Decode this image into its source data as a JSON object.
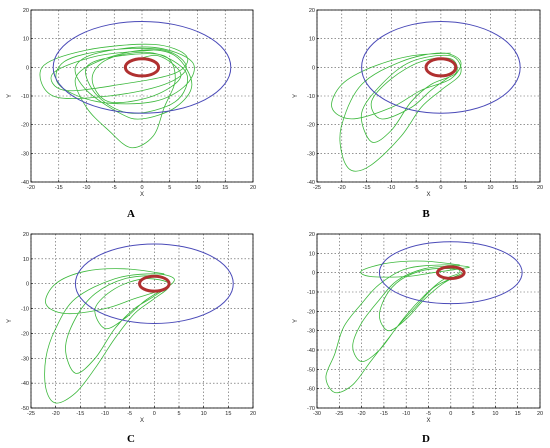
{
  "chart_data": [
    {
      "type": "line",
      "panel_label": "A",
      "xlabel": "X",
      "ylabel": "Y",
      "xlim": [
        -20,
        20
      ],
      "ylim": [
        -40,
        20
      ],
      "xticks": [
        -20,
        -15,
        -10,
        -5,
        0,
        5,
        10,
        15,
        20
      ],
      "yticks": [
        -40,
        -30,
        -20,
        -10,
        0,
        10,
        20
      ],
      "grid": true,
      "outer_circle": {
        "cx": 0,
        "cy": 0,
        "rx": 16,
        "ry": 16,
        "color": "#4a4ab8"
      },
      "inner_circle": {
        "cx": 0,
        "cy": 0,
        "rx": 3,
        "ry": 3,
        "color": "#b03030"
      },
      "trajectory_color": "#3cb83c",
      "trajectory": [
        [
          2,
          6
        ],
        [
          -8,
          4
        ],
        [
          -16,
          -2
        ],
        [
          -14,
          -8
        ],
        [
          -4,
          -6
        ],
        [
          6,
          -2
        ],
        [
          8,
          4
        ],
        [
          2,
          8
        ],
        [
          -10,
          6
        ],
        [
          -18,
          0
        ],
        [
          -16,
          -10
        ],
        [
          -6,
          -10
        ],
        [
          4,
          -6
        ],
        [
          8,
          0
        ],
        [
          4,
          6
        ],
        [
          -6,
          6
        ],
        [
          -14,
          2
        ],
        [
          -15,
          -6
        ],
        [
          -8,
          -12
        ],
        [
          2,
          -12
        ],
        [
          8,
          -6
        ],
        [
          9,
          2
        ],
        [
          2,
          7
        ],
        [
          -8,
          5
        ],
        [
          -12,
          0
        ],
        [
          -10,
          -8
        ],
        [
          -4,
          -16
        ],
        [
          0,
          -18
        ],
        [
          6,
          -14
        ],
        [
          9,
          -6
        ],
        [
          6,
          4
        ],
        [
          0,
          6
        ],
        [
          -8,
          2
        ],
        [
          -12,
          -4
        ],
        [
          -10,
          -14
        ],
        [
          -6,
          -22
        ],
        [
          -2,
          -28
        ],
        [
          2,
          -24
        ],
        [
          4,
          -14
        ],
        [
          6,
          -4
        ],
        [
          4,
          4
        ],
        [
          -4,
          4
        ],
        [
          -10,
          0
        ],
        [
          -8,
          -10
        ],
        [
          -2,
          -16
        ],
        [
          6,
          -12
        ],
        [
          8,
          -2
        ],
        [
          2,
          5
        ],
        [
          -6,
          3
        ],
        [
          -9,
          -4
        ],
        [
          -6,
          -12
        ],
        [
          2,
          -10
        ],
        [
          7,
          -3
        ],
        [
          3,
          4
        ],
        [
          -2,
          2
        ]
      ]
    },
    {
      "type": "line",
      "panel_label": "B",
      "xlabel": "X",
      "ylabel": "Y",
      "xlim": [
        -25,
        20
      ],
      "ylim": [
        -40,
        20
      ],
      "xticks": [
        -25,
        -20,
        -15,
        -10,
        -5,
        0,
        5,
        10,
        15,
        20
      ],
      "yticks": [
        -40,
        -30,
        -20,
        -10,
        0,
        10,
        20
      ],
      "grid": true,
      "outer_circle": {
        "cx": 0,
        "cy": 0,
        "rx": 16,
        "ry": 16,
        "color": "#4a4ab8"
      },
      "inner_circle": {
        "cx": 0,
        "cy": 0,
        "rx": 3,
        "ry": 3,
        "color": "#b03030"
      },
      "trajectory_color": "#3cb83c",
      "trajectory": [
        [
          2,
          5
        ],
        [
          -6,
          4
        ],
        [
          -14,
          0
        ],
        [
          -20,
          -6
        ],
        [
          -22,
          -14
        ],
        [
          -18,
          -18
        ],
        [
          -10,
          -14
        ],
        [
          -4,
          -8
        ],
        [
          2,
          -4
        ],
        [
          4,
          2
        ],
        [
          0,
          5
        ],
        [
          -8,
          2
        ],
        [
          -16,
          -6
        ],
        [
          -20,
          -20
        ],
        [
          -20,
          -30
        ],
        [
          -18,
          -36
        ],
        [
          -14,
          -34
        ],
        [
          -8,
          -24
        ],
        [
          -4,
          -14
        ],
        [
          0,
          -8
        ],
        [
          4,
          -2
        ],
        [
          2,
          4
        ],
        [
          -6,
          2
        ],
        [
          -12,
          -6
        ],
        [
          -16,
          -16
        ],
        [
          -14,
          -26
        ],
        [
          -10,
          -22
        ],
        [
          -6,
          -12
        ],
        [
          -2,
          -6
        ],
        [
          3,
          -2
        ],
        [
          2,
          3
        ],
        [
          -4,
          2
        ],
        [
          -10,
          -4
        ],
        [
          -14,
          -12
        ],
        [
          -12,
          -18
        ],
        [
          -6,
          -14
        ],
        [
          -2,
          -8
        ],
        [
          2,
          -3
        ]
      ]
    },
    {
      "type": "line",
      "panel_label": "C",
      "xlabel": "X",
      "ylabel": "Y",
      "xlim": [
        -25,
        20
      ],
      "ylim": [
        -50,
        20
      ],
      "xticks": [
        -25,
        -20,
        -15,
        -10,
        -5,
        0,
        5,
        10,
        15,
        20
      ],
      "yticks": [
        -50,
        -40,
        -30,
        -20,
        -10,
        0,
        10,
        20
      ],
      "grid": true,
      "outer_circle": {
        "cx": 0,
        "cy": 0,
        "rx": 16,
        "ry": 16,
        "color": "#4a4ab8"
      },
      "inner_circle": {
        "cx": 0,
        "cy": 0,
        "rx": 3,
        "ry": 3,
        "color": "#b03030"
      },
      "trajectory_color": "#3cb83c",
      "trajectory": [
        [
          2,
          4
        ],
        [
          -6,
          6
        ],
        [
          -14,
          5
        ],
        [
          -20,
          0
        ],
        [
          -22,
          -8
        ],
        [
          -18,
          -12
        ],
        [
          -10,
          -10
        ],
        [
          -4,
          -6
        ],
        [
          2,
          -2
        ],
        [
          4,
          2
        ],
        [
          0,
          4
        ],
        [
          -8,
          2
        ],
        [
          -16,
          -6
        ],
        [
          -20,
          -18
        ],
        [
          -22,
          -30
        ],
        [
          -22,
          -42
        ],
        [
          -20,
          -48
        ],
        [
          -16,
          -44
        ],
        [
          -12,
          -34
        ],
        [
          -8,
          -22
        ],
        [
          -4,
          -12
        ],
        [
          0,
          -6
        ],
        [
          3,
          -1
        ],
        [
          1,
          3
        ],
        [
          -6,
          2
        ],
        [
          -12,
          -4
        ],
        [
          -16,
          -14
        ],
        [
          -18,
          -26
        ],
        [
          -16,
          -36
        ],
        [
          -12,
          -30
        ],
        [
          -8,
          -18
        ],
        [
          -4,
          -10
        ],
        [
          0,
          -5
        ],
        [
          3,
          0
        ],
        [
          -2,
          2
        ],
        [
          -8,
          -2
        ],
        [
          -12,
          -10
        ],
        [
          -10,
          -18
        ],
        [
          -6,
          -14
        ],
        [
          -2,
          -7
        ],
        [
          2,
          -2
        ]
      ]
    },
    {
      "type": "line",
      "panel_label": "D",
      "xlabel": "X",
      "ylabel": "Y",
      "xlim": [
        -30,
        20
      ],
      "ylim": [
        -70,
        20
      ],
      "xticks": [
        -30,
        -25,
        -20,
        -15,
        -10,
        -5,
        0,
        5,
        10,
        15,
        20
      ],
      "yticks": [
        -70,
        -60,
        -50,
        -40,
        -30,
        -20,
        -10,
        0,
        10,
        20
      ],
      "grid": true,
      "outer_circle": {
        "cx": 0,
        "cy": 0,
        "rx": 16,
        "ry": 16,
        "color": "#4a4ab8"
      },
      "inner_circle": {
        "cx": 0,
        "cy": 0,
        "rx": 3,
        "ry": 3,
        "color": "#b03030"
      },
      "trajectory_color": "#3cb83c",
      "trajectory": [
        [
          2,
          4
        ],
        [
          -6,
          6
        ],
        [
          -14,
          5
        ],
        [
          -20,
          1
        ],
        [
          -18,
          -2
        ],
        [
          -10,
          -2
        ],
        [
          -4,
          0
        ],
        [
          2,
          2
        ],
        [
          4,
          3
        ],
        [
          -2,
          4
        ],
        [
          -10,
          2
        ],
        [
          -16,
          -6
        ],
        [
          -20,
          -16
        ],
        [
          -24,
          -28
        ],
        [
          -26,
          -42
        ],
        [
          -28,
          -54
        ],
        [
          -26,
          -62
        ],
        [
          -22,
          -58
        ],
        [
          -18,
          -46
        ],
        [
          -14,
          -34
        ],
        [
          -10,
          -22
        ],
        [
          -6,
          -12
        ],
        [
          -2,
          -4
        ],
        [
          2,
          0
        ],
        [
          0,
          3
        ],
        [
          -6,
          2
        ],
        [
          -12,
          -4
        ],
        [
          -16,
          -14
        ],
        [
          -20,
          -26
        ],
        [
          -22,
          -38
        ],
        [
          -20,
          -46
        ],
        [
          -16,
          -40
        ],
        [
          -12,
          -28
        ],
        [
          -8,
          -18
        ],
        [
          -4,
          -8
        ],
        [
          0,
          -3
        ],
        [
          3,
          1
        ],
        [
          -4,
          2
        ],
        [
          -10,
          -2
        ],
        [
          -14,
          -10
        ],
        [
          -16,
          -22
        ],
        [
          -14,
          -30
        ],
        [
          -10,
          -24
        ],
        [
          -6,
          -14
        ],
        [
          -2,
          -6
        ],
        [
          2,
          -1
        ]
      ]
    }
  ]
}
